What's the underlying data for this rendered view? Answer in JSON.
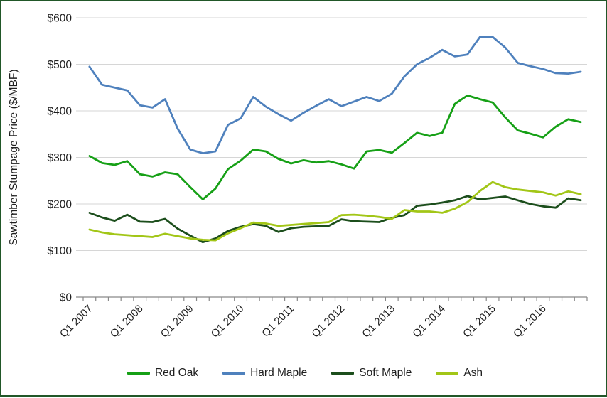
{
  "chart_data": {
    "type": "line",
    "title": "",
    "ylabel": "Sawtimber Stumpage Price ($/MBF)",
    "xlabel": "",
    "ylim": [
      0,
      600
    ],
    "y_tick_step": 100,
    "y_tick_labels": [
      "$0",
      "$100",
      "$200",
      "$300",
      "$400",
      "$500",
      "$600"
    ],
    "x_label_every": 4,
    "grid": "horizontal",
    "legend_position": "bottom",
    "categories": [
      "Q1 2007",
      "Q2 2007",
      "Q3 2007",
      "Q4 2007",
      "Q1 2008",
      "Q2 2008",
      "Q3 2008",
      "Q4 2008",
      "Q1 2009",
      "Q2 2009",
      "Q3 2009",
      "Q4 2009",
      "Q1 2010",
      "Q2 2010",
      "Q3 2010",
      "Q4 2010",
      "Q1 2011",
      "Q2 2011",
      "Q3 2011",
      "Q4 2011",
      "Q1 2012",
      "Q2 2012",
      "Q3 2012",
      "Q4 2012",
      "Q1 2013",
      "Q2 2013",
      "Q3 2013",
      "Q4 2013",
      "Q1 2014",
      "Q2 2014",
      "Q3 2014",
      "Q4 2014",
      "Q1 2015",
      "Q2 2015",
      "Q3 2015",
      "Q4 2015",
      "Q1 2016",
      "Q2 2016",
      "Q3 2016",
      "Q4 2016"
    ],
    "series": [
      {
        "name": "Red Oak",
        "color": "#16A016",
        "values": [
          303,
          288,
          284,
          292,
          264,
          259,
          268,
          264,
          236,
          210,
          233,
          275,
          293,
          317,
          313,
          297,
          287,
          294,
          289,
          292,
          285,
          276,
          313,
          316,
          310,
          331,
          353,
          346,
          353,
          415,
          433,
          425,
          418,
          386,
          358,
          351,
          343,
          366,
          382,
          376
        ]
      },
      {
        "name": "Hard Maple",
        "color": "#4F81BD",
        "values": [
          495,
          456,
          450,
          444,
          412,
          407,
          425,
          362,
          317,
          309,
          313,
          370,
          384,
          430,
          409,
          393,
          379,
          396,
          411,
          425,
          410,
          420,
          430,
          421,
          437,
          474,
          500,
          514,
          531,
          517,
          521,
          559,
          559,
          536,
          503,
          496,
          490,
          481,
          480,
          484
        ]
      },
      {
        "name": "Soft Maple",
        "color": "#1C4E1C",
        "values": [
          181,
          171,
          164,
          177,
          162,
          161,
          168,
          147,
          132,
          118,
          126,
          142,
          151,
          157,
          153,
          140,
          148,
          151,
          152,
          153,
          167,
          163,
          162,
          161,
          170,
          176,
          196,
          199,
          203,
          208,
          217,
          210,
          213,
          216,
          208,
          200,
          195,
          192,
          212,
          208
        ]
      },
      {
        "name": "Ash",
        "color": "#A2C617",
        "values": [
          145,
          139,
          135,
          133,
          131,
          129,
          136,
          131,
          126,
          123,
          122,
          137,
          148,
          160,
          158,
          153,
          155,
          157,
          159,
          161,
          176,
          177,
          175,
          172,
          168,
          187,
          184,
          184,
          181,
          190,
          204,
          228,
          247,
          236,
          231,
          228,
          225,
          218,
          227,
          221
        ]
      }
    ],
    "colors": {
      "frame_border": "#215728",
      "gridline": "#D6D6D6",
      "axis_line": "#898989",
      "text": "#1f1f1f",
      "background": "#FFFFFF"
    }
  }
}
